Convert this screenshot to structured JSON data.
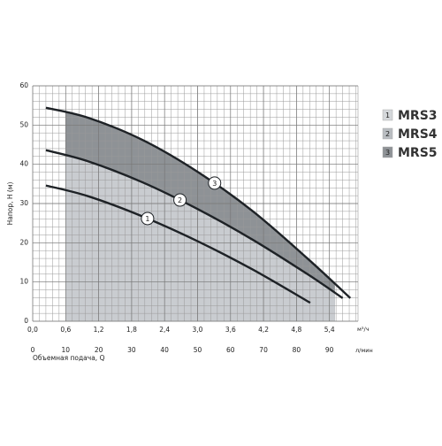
{
  "chart_data": {
    "type": "line",
    "xlabel": "Объемная подача, Q",
    "ylabel": "Напор, H (м)",
    "xunit": "м³/ч",
    "x2unit": "л/мин",
    "xlim": [
      0,
      5.92
    ],
    "xticks": [
      {
        "value": 0,
        "label": "0,0"
      },
      {
        "value": 0.6,
        "label": "0,6"
      },
      {
        "value": 1.2,
        "label": "1,2"
      },
      {
        "value": 1.8,
        "label": "1,8"
      },
      {
        "value": 2.4,
        "label": "2,4"
      },
      {
        "value": 3.0,
        "label": "3,0"
      },
      {
        "value": 3.6,
        "label": "3,6"
      },
      {
        "value": 4.2,
        "label": "4,2"
      },
      {
        "value": 4.8,
        "label": "4,8"
      },
      {
        "value": 5.4,
        "label": "5,4"
      }
    ],
    "x2lim": [
      0,
      98.67
    ],
    "x2ticks": [
      0,
      10,
      20,
      30,
      40,
      50,
      60,
      70,
      80,
      90
    ],
    "ylim": [
      0,
      60
    ],
    "yticks": [
      0,
      10,
      20,
      30,
      40,
      50,
      60
    ],
    "grid": true,
    "shaded_range": [
      0.6,
      5.5
    ],
    "series": [
      {
        "name": "MRS3",
        "label": "1",
        "color": "#d4d7da",
        "x": [
          0.24,
          1,
          2,
          3,
          4,
          5.05
        ],
        "values": [
          34.6,
          31.9,
          26.7,
          20.4,
          13.2,
          4.7
        ]
      },
      {
        "name": "MRS4",
        "label": "2",
        "color": "#b9bdc1",
        "x": [
          0.24,
          1,
          2,
          3,
          4,
          5,
          5.64
        ],
        "values": [
          43.6,
          40.8,
          35.4,
          28.6,
          20.8,
          12.0,
          5.9
        ]
      },
      {
        "name": "MRS5",
        "label": "3",
        "color": "#8e9296",
        "x": [
          0.24,
          1,
          2,
          3,
          4,
          5,
          5.78
        ],
        "values": [
          54.4,
          51.9,
          46.2,
          38.1,
          28.1,
          16.0,
          5.9
        ]
      }
    ]
  }
}
